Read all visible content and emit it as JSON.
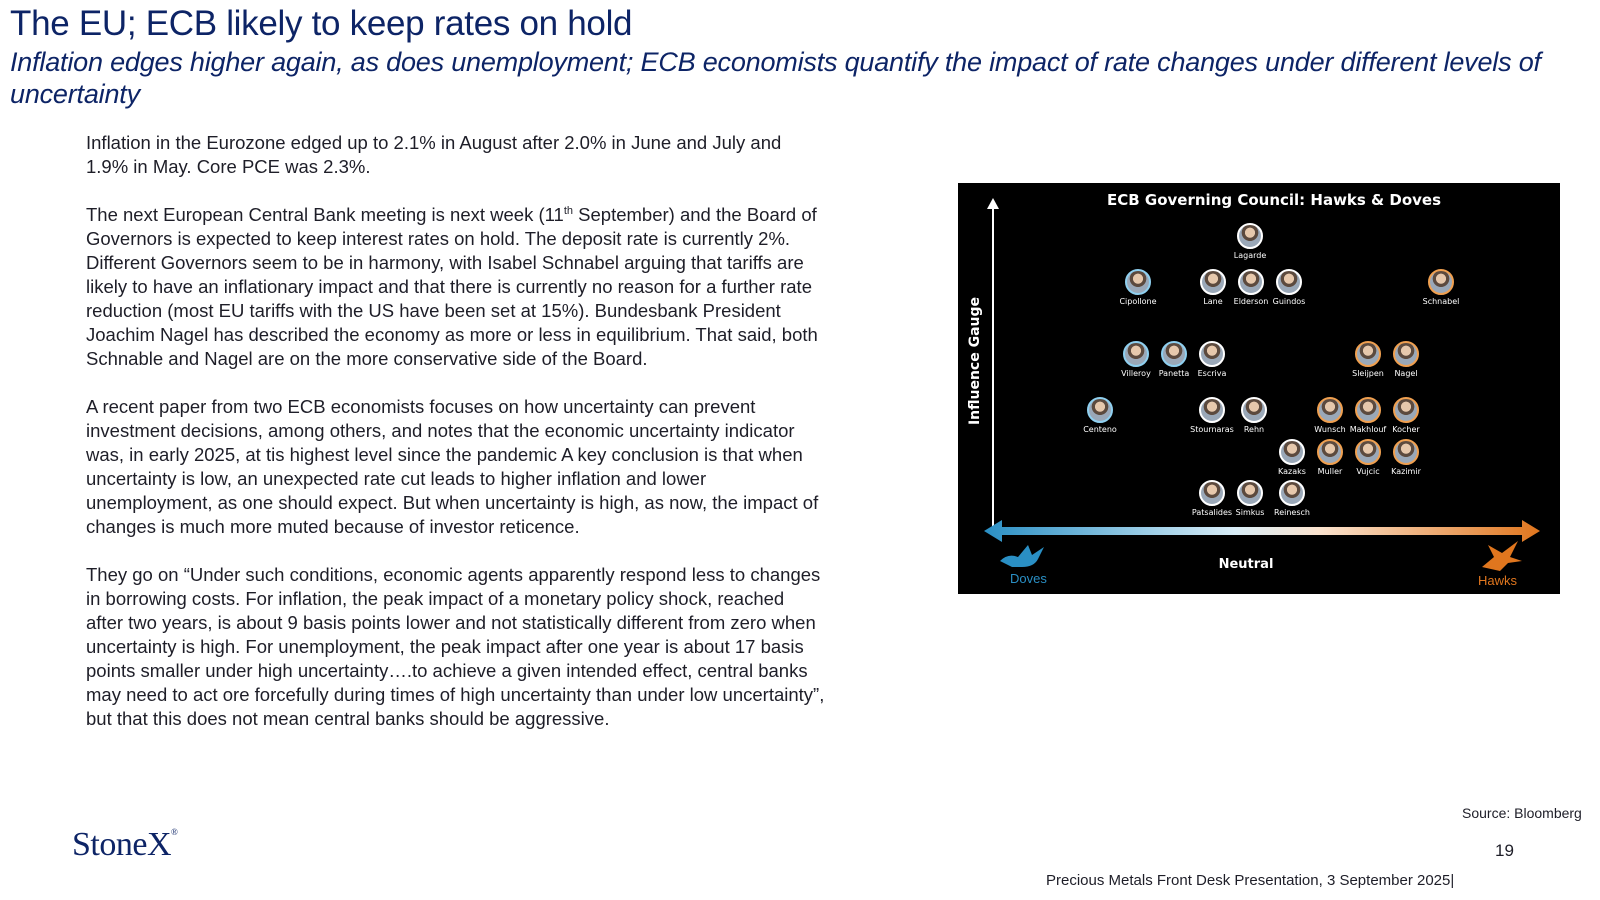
{
  "header": {
    "title": "The EU; ECB likely to keep rates on hold",
    "subtitle": "Inflation edges higher again, as does unemployment; ECB economists quantify the impact of rate changes under different levels of uncertainty"
  },
  "body": {
    "p1": "Inflation in the Eurozone edged up to 2.1% in  August after 2.0% in June and July and 1.9% in May.  Core PCE was 2.3%.",
    "p2_before": "The next European Central Bank meeting is next week (11",
    "p2_sup": "th",
    "p2_after": " September) and the Board of Governors is expected to keep interest rates on hold.  The deposit rate is currently 2%.  Different Governors seem to be in harmony, with Isabel Schnabel arguing that tariffs are likely to have an inflationary impact and that there is currently no reason for a further rate reduction (most EU tariffs with the US have been set at 15%). Bundesbank President Joachim Nagel has described the economy as more or less in equilibrium.  That said, both Schnable and Nagel are on the more conservative side of the Board.",
    "p3": "A recent paper from two ECB economists focuses on how uncertainty can prevent investment decisions, among others, and notes that the economic uncertainty indicator was, in early 2025, at tis highest level since the pandemic   A key conclusion is that when uncertainty is low, an unexpected rate cut leads to higher inflation and lower unemployment, as one should expect.  But when uncertainty is high, as now, the impact of changes is much more muted because of investor reticence.",
    "p4": "They go on “Under such conditions, economic agents apparently respond less to changes in borrowing costs. For inflation, the peak impact of a monetary policy shock, reached after two years, is about 9 basis points lower and not statistically different from zero when uncertainty is high. For unemployment, the peak impact after one year is about 17 basis points smaller under high uncertainty….to achieve a given intended effect, central banks may need to act ore forcefully during times of high uncertainty than under low uncertainty”, but that this does not mean central banks should be aggressive."
  },
  "figure": {
    "title": "ECB Governing Council: Hawks & Doves",
    "y_axis_label": "Influence Gauge",
    "neutral_label": "Neutral",
    "doves_label": "Doves",
    "hawks_label": "Hawks",
    "members": [
      {
        "name": "Lagarde",
        "stance": "neutral"
      },
      {
        "name": "Cipollone",
        "stance": "dove"
      },
      {
        "name": "Lane",
        "stance": "neutral"
      },
      {
        "name": "Elderson",
        "stance": "neutral"
      },
      {
        "name": "Guindos",
        "stance": "neutral"
      },
      {
        "name": "Schnabel",
        "stance": "hawk"
      },
      {
        "name": "Villeroy",
        "stance": "dove"
      },
      {
        "name": "Panetta",
        "stance": "dove"
      },
      {
        "name": "Escriva",
        "stance": "neutral"
      },
      {
        "name": "Sleijpen",
        "stance": "hawk"
      },
      {
        "name": "Nagel",
        "stance": "hawk"
      },
      {
        "name": "Centeno",
        "stance": "dove"
      },
      {
        "name": "Stournaras",
        "stance": "neutral"
      },
      {
        "name": "Rehn",
        "stance": "neutral"
      },
      {
        "name": "Wunsch",
        "stance": "hawk"
      },
      {
        "name": "Makhlouf",
        "stance": "hawk"
      },
      {
        "name": "Kocher",
        "stance": "hawk"
      },
      {
        "name": "Kazaks",
        "stance": "neutral"
      },
      {
        "name": "Muller",
        "stance": "hawk"
      },
      {
        "name": "Vujcic",
        "stance": "hawk"
      },
      {
        "name": "Kazimir",
        "stance": "hawk"
      },
      {
        "name": "Patsalides",
        "stance": "neutral"
      },
      {
        "name": "Simkus",
        "stance": "neutral"
      },
      {
        "name": "Reinesch",
        "stance": "neutral"
      }
    ],
    "colors": {
      "dove": "#2a8fc4",
      "hawk": "#e0761e",
      "background": "#000000"
    }
  },
  "footer": {
    "source": "Source: Bloomberg",
    "page_number": "19",
    "presentation": "Precious Metals Front Desk Presentation, 3 September 2025|",
    "logo_text": "StoneX",
    "logo_mark": "®"
  },
  "colors": {
    "heading": "#0d2466",
    "body_text": "#1e1e28"
  }
}
